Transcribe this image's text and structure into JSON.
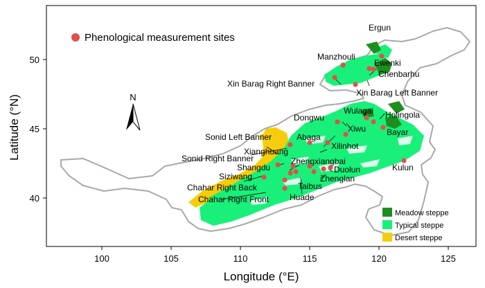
{
  "axes": {
    "x_title": "Longitude (°E)",
    "y_title": "Latitude (°N)",
    "x_ticks": [
      "100",
      "105",
      "110",
      "115",
      "120",
      "125"
    ],
    "y_ticks": [
      "40",
      "45",
      "50"
    ]
  },
  "north_label": "N",
  "legend_sites": "Phenological measurement sites",
  "legend": [
    {
      "label": "Meadow steppe",
      "color": "#1e8f1e"
    },
    {
      "label": "Typical steppe",
      "color": "#19f07a"
    },
    {
      "label": "Desert steppe",
      "color": "#f5cd0c"
    }
  ],
  "colors": {
    "site": "#e0504a",
    "outline": "#a8a8a8"
  },
  "sites": [
    {
      "name": "Ergun",
      "lon": 120.2,
      "lat": 50.25
    },
    {
      "name": "Manzhouli",
      "lon": 117.4,
      "lat": 49.6
    },
    {
      "name": "Ewenki",
      "lon": 119.6,
      "lat": 49.3
    },
    {
      "name": "Chenbarhu",
      "lon": 119.3,
      "lat": 49.35
    },
    {
      "name": "Xin Barag Right Banner",
      "lon": 116.8,
      "lat": 48.7
    },
    {
      "name": "Xin Barag Left Banner",
      "lon": 118.3,
      "lat": 48.2
    },
    {
      "name": "Wulagai",
      "lon": 119.1,
      "lat": 45.8
    },
    {
      "name": "Holingola",
      "lon": 119.6,
      "lat": 45.5
    },
    {
      "name": "Dongwu",
      "lon": 117.0,
      "lat": 45.5
    },
    {
      "name": "Bayar",
      "lon": 120.3,
      "lat": 45.1
    },
    {
      "name": "Xiwu",
      "lon": 117.6,
      "lat": 44.6
    },
    {
      "name": "Abaga",
      "lon": 115.0,
      "lat": 44.0
    },
    {
      "name": "Xilinhot",
      "lon": 116.3,
      "lat": 44.0
    },
    {
      "name": "Sonid Left Banner",
      "lon": 113.6,
      "lat": 43.85
    },
    {
      "name": "Sonid Right Banner",
      "lon": 112.7,
      "lat": 42.4
    },
    {
      "name": "Xianghuang",
      "lon": 113.8,
      "lat": 42.3
    },
    {
      "name": "Zhengxiangbai",
      "lon": 115.0,
      "lat": 42.3
    },
    {
      "name": "Shangdu",
      "lon": 113.6,
      "lat": 41.8
    },
    {
      "name": "Duolun",
      "lon": 116.5,
      "lat": 42.2
    },
    {
      "name": "Zhenglan",
      "lon": 116.0,
      "lat": 42.1
    },
    {
      "name": "Kulun",
      "lon": 121.8,
      "lat": 42.7
    },
    {
      "name": "Siziwang",
      "lon": 111.7,
      "lat": 41.5
    },
    {
      "name": "Taibus",
      "lon": 115.3,
      "lat": 41.9
    },
    {
      "name": "Chahar Right Back",
      "lon": 113.2,
      "lat": 41.3
    },
    {
      "name": "Chahar Right Front",
      "lon": 113.2,
      "lat": 40.7
    },
    {
      "name": "Huade",
      "lon": 114.0,
      "lat": 41.9
    }
  ]
}
